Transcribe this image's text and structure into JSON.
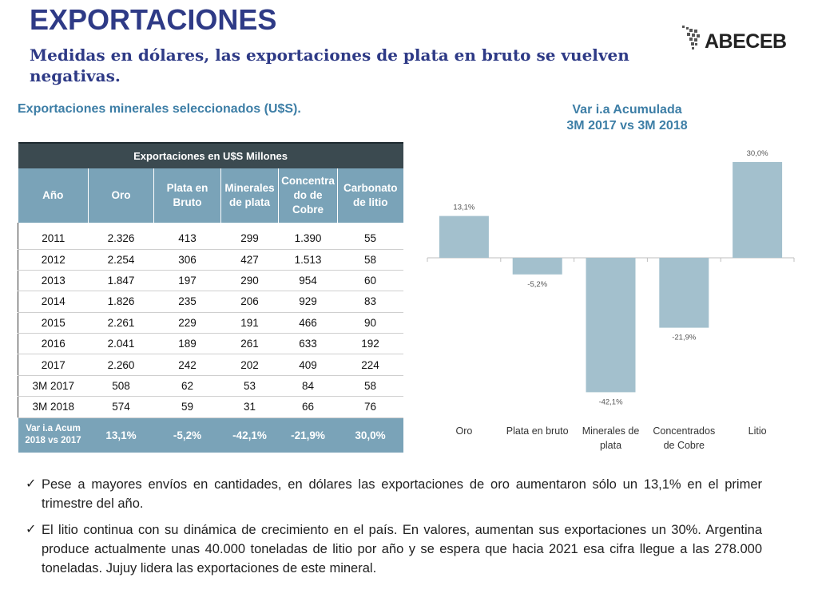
{
  "title": "EXPORTACIONES",
  "subtitle": "Medidas en dólares, las exportaciones de plata en bruto se vuelven negativas.",
  "logo_text": "ABECEB",
  "table_caption": "Exportaciones minerales seleccionados (U$S).",
  "table": {
    "header": "Exportaciones en U$S Millones",
    "columns": [
      "Año",
      "Oro",
      "Plata en Bruto",
      "Minerales de plata",
      "Concentra do de Cobre",
      "Carbonato de litio"
    ],
    "rows": [
      [
        "2011",
        "2.326",
        "413",
        "299",
        "1.390",
        "55"
      ],
      [
        "2012",
        "2.254",
        "306",
        "427",
        "1.513",
        "58"
      ],
      [
        "2013",
        "1.847",
        "197",
        "290",
        "954",
        "60"
      ],
      [
        "2014",
        "1.826",
        "235",
        "206",
        "929",
        "83"
      ],
      [
        "2015",
        "2.261",
        "229",
        "191",
        "466",
        "90"
      ],
      [
        "2016",
        "2.041",
        "189",
        "261",
        "633",
        "192"
      ],
      [
        "2017",
        "2.260",
        "242",
        "202",
        "409",
        "224"
      ],
      [
        "3M 2017",
        "508",
        "62",
        "53",
        "84",
        "58"
      ],
      [
        "3M 2018",
        "574",
        "59",
        "31",
        "66",
        "76"
      ]
    ],
    "footer": [
      "Var i.a Acum 2018 vs 2017",
      "13,1%",
      "-5,2%",
      "-42,1%",
      "-21,9%",
      "30,0%"
    ]
  },
  "chart_data": {
    "type": "bar",
    "title": "Var i.a Acumulada\n3M 2017 vs 3M 2018",
    "categories": [
      "Oro",
      "Plata en bruto",
      "Minerales de plata",
      "Concentrados de Cobre",
      "Litio"
    ],
    "values": [
      13.1,
      -5.2,
      -42.1,
      -21.9,
      30.0
    ],
    "data_labels": [
      "13,1%",
      "-5,2%",
      "-42,1%",
      "-21,9%",
      "30,0%"
    ],
    "bar_color": "#a3c0cd",
    "ylim": [
      -45,
      35
    ],
    "grid": false
  },
  "bullets": [
    "Pese a mayores envíos en cantidades, en dólares las exportaciones de oro aumentaron sólo un 13,1% en el primer trimestre del año.",
    "El litio continua con su dinámica de crecimiento en el país. En valores, aumentan sus exportaciones un 30%. Argentina produce actualmente unas 40.000 toneladas de litio por año y se espera que hacia 2021 esa cifra llegue a las 278.000 toneladas. Jujuy lidera las exportaciones de este mineral."
  ]
}
